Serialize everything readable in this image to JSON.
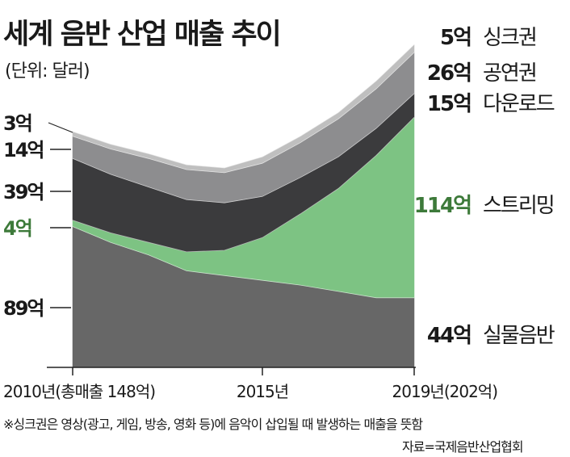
{
  "chart_data": {
    "type": "area",
    "title": "세계 음반 산업 매출 추이",
    "unit_note": "(단위: 달러)",
    "footnote": "※싱크권은 영상(광고, 게임, 방송, 영화 등)에 음악이 삽입될 때 발생하는 매출을 뜻함",
    "source": "자료=국제음반산업협회",
    "x": [
      2010,
      2011,
      2012,
      2013,
      2014,
      2015,
      2016,
      2017,
      2018,
      2019
    ],
    "x_tick_labels": [
      {
        "x": 2010,
        "label": "2010년(총매출 148억)"
      },
      {
        "x": 2015,
        "label": "2015년"
      },
      {
        "x": 2019,
        "label": "2019년(202억)"
      }
    ],
    "stack_order": [
      "실물음반",
      "스트리밍",
      "다운로드",
      "공연권",
      "싱크권"
    ],
    "series": [
      {
        "name": "실물음반",
        "color": "#676767",
        "values": [
          89,
          79,
          71,
          61,
          58,
          55,
          52,
          48,
          44,
          44
        ]
      },
      {
        "name": "스트리밍",
        "color": "#7dc383",
        "values": [
          4,
          6,
          8,
          12,
          16,
          27,
          45,
          65,
          90,
          114
        ]
      },
      {
        "name": "다운로드",
        "color": "#3b3b3d",
        "values": [
          39,
          37,
          35,
          33,
          30,
          26,
          23,
          20,
          17,
          15
        ]
      },
      {
        "name": "공연권",
        "color": "#8d8d8f",
        "values": [
          14,
          16,
          18,
          19,
          19,
          21,
          22,
          24,
          25,
          26
        ]
      },
      {
        "name": "싱크권",
        "color": "#bfbfbf",
        "values": [
          3,
          3,
          3,
          3,
          3,
          4,
          4,
          4,
          5,
          5
        ]
      }
    ],
    "left_labels": [
      {
        "series": "싱크권",
        "text": "3억"
      },
      {
        "series": "공연권",
        "text": "14억"
      },
      {
        "series": "다운로드",
        "text": "39억"
      },
      {
        "series": "스트리밍",
        "text": "4억"
      },
      {
        "series": "실물음반",
        "text": "89억"
      }
    ],
    "right_labels": [
      {
        "series": "싱크권",
        "value": "5억",
        "name": "싱크권"
      },
      {
        "series": "공연권",
        "value": "26억",
        "name": "공연권"
      },
      {
        "series": "다운로드",
        "value": "15억",
        "name": "다운로드"
      },
      {
        "series": "스트리밍",
        "value": "114억",
        "name": "스트리밍"
      },
      {
        "series": "실물음반",
        "value": "44억",
        "name": "실물음반"
      }
    ],
    "highlight_color": "#3d7a3a",
    "grid": false
  }
}
